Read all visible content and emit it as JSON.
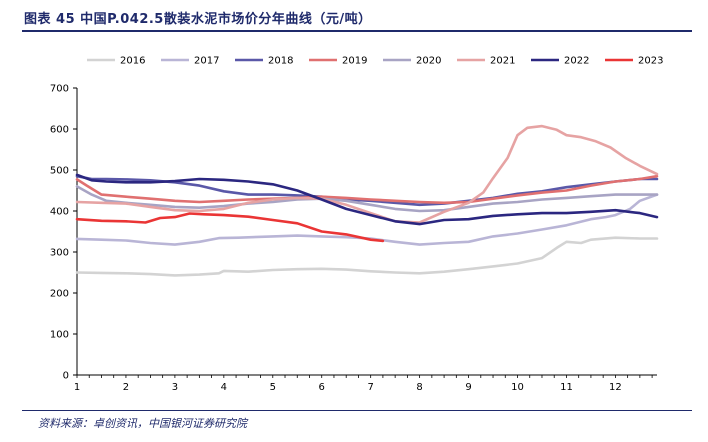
{
  "header": {
    "title": "图表 45 中国P.042.5散装水泥市场价分年曲线（元/吨）"
  },
  "footer": {
    "source": "资料来源：卓创资讯，中国银河证券研究院"
  },
  "colors": {
    "2016": "#d3d3d3",
    "2017": "#b9b5d6",
    "2018": "#5a58a8",
    "2019": "#e07070",
    "2020": "#a8a4c4",
    "2021": "#e6a3a3",
    "2022": "#2b2780",
    "2023": "#ea3535"
  },
  "chart_data": {
    "type": "line",
    "title": "中国P.042.5散装水泥市场价分年曲线（元/吨）",
    "xlabel": "",
    "ylabel": "",
    "xlim": [
      1,
      12.85
    ],
    "ylim": [
      0,
      700
    ],
    "yticks": [
      0,
      100,
      200,
      300,
      400,
      500,
      600,
      700
    ],
    "xticks": [
      1,
      2,
      3,
      4,
      5,
      6,
      7,
      8,
      9,
      10,
      11,
      12
    ],
    "legend_position": "top",
    "series": [
      {
        "name": "2016",
        "points": [
          [
            1,
            250
          ],
          [
            1.5,
            249
          ],
          [
            2,
            248
          ],
          [
            2.5,
            246
          ],
          [
            3,
            243
          ],
          [
            3.5,
            245
          ],
          [
            3.9,
            248
          ],
          [
            4,
            254
          ],
          [
            4.5,
            252
          ],
          [
            5,
            256
          ],
          [
            5.5,
            258
          ],
          [
            6,
            259
          ],
          [
            6.5,
            257
          ],
          [
            7,
            253
          ],
          [
            7.5,
            250
          ],
          [
            8,
            248
          ],
          [
            8.5,
            252
          ],
          [
            9,
            258
          ],
          [
            9.5,
            265
          ],
          [
            10,
            272
          ],
          [
            10.5,
            285
          ],
          [
            10.8,
            310
          ],
          [
            11,
            325
          ],
          [
            11.3,
            322
          ],
          [
            11.5,
            330
          ],
          [
            12,
            335
          ],
          [
            12.5,
            333
          ],
          [
            12.85,
            333
          ]
        ]
      },
      {
        "name": "2017",
        "points": [
          [
            1,
            332
          ],
          [
            1.5,
            330
          ],
          [
            2,
            328
          ],
          [
            2.5,
            322
          ],
          [
            3,
            318
          ],
          [
            3.5,
            325
          ],
          [
            3.9,
            334
          ],
          [
            4.3,
            335
          ],
          [
            5,
            338
          ],
          [
            5.5,
            340
          ],
          [
            6,
            338
          ],
          [
            6.5,
            336
          ],
          [
            7,
            333
          ],
          [
            7.5,
            325
          ],
          [
            8,
            318
          ],
          [
            8.5,
            322
          ],
          [
            9,
            325
          ],
          [
            9.5,
            338
          ],
          [
            10,
            345
          ],
          [
            10.5,
            355
          ],
          [
            11,
            365
          ],
          [
            11.5,
            380
          ],
          [
            11.8,
            385
          ],
          [
            12,
            390
          ],
          [
            12.3,
            405
          ],
          [
            12.5,
            425
          ],
          [
            12.85,
            440
          ]
        ]
      },
      {
        "name": "2018",
        "points": [
          [
            1,
            485
          ],
          [
            1.3,
            478
          ],
          [
            1.6,
            478
          ],
          [
            2,
            477
          ],
          [
            2.5,
            475
          ],
          [
            3,
            470
          ],
          [
            3.5,
            462
          ],
          [
            4,
            448
          ],
          [
            4.5,
            440
          ],
          [
            5,
            440
          ],
          [
            5.5,
            438
          ],
          [
            6,
            435
          ],
          [
            6.5,
            428
          ],
          [
            7,
            425
          ],
          [
            7.5,
            420
          ],
          [
            8,
            415
          ],
          [
            8.5,
            418
          ],
          [
            9,
            425
          ],
          [
            9.5,
            432
          ],
          [
            10,
            442
          ],
          [
            10.5,
            448
          ],
          [
            11,
            458
          ],
          [
            11.5,
            465
          ],
          [
            12,
            472
          ],
          [
            12.5,
            478
          ],
          [
            12.85,
            478
          ]
        ]
      },
      {
        "name": "2019",
        "points": [
          [
            1,
            477
          ],
          [
            1.2,
            462
          ],
          [
            1.5,
            440
          ],
          [
            2,
            435
          ],
          [
            2.5,
            430
          ],
          [
            3,
            425
          ],
          [
            3.5,
            422
          ],
          [
            4,
            425
          ],
          [
            4.5,
            428
          ],
          [
            5,
            430
          ],
          [
            5.5,
            432
          ],
          [
            6,
            435
          ],
          [
            6.5,
            432
          ],
          [
            7,
            428
          ],
          [
            7.5,
            425
          ],
          [
            8,
            422
          ],
          [
            8.5,
            420
          ],
          [
            9,
            422
          ],
          [
            9.5,
            430
          ],
          [
            10,
            438
          ],
          [
            10.5,
            445
          ],
          [
            11,
            450
          ],
          [
            11.5,
            462
          ],
          [
            12,
            472
          ],
          [
            12.5,
            478
          ],
          [
            12.85,
            485
          ]
        ]
      },
      {
        "name": "2020",
        "points": [
          [
            1,
            460
          ],
          [
            1.3,
            440
          ],
          [
            1.6,
            425
          ],
          [
            2,
            420
          ],
          [
            2.5,
            415
          ],
          [
            3,
            410
          ],
          [
            3.5,
            408
          ],
          [
            4,
            412
          ],
          [
            4.5,
            418
          ],
          [
            5,
            422
          ],
          [
            5.5,
            428
          ],
          [
            6,
            430
          ],
          [
            6.5,
            425
          ],
          [
            7,
            415
          ],
          [
            7.5,
            405
          ],
          [
            8,
            400
          ],
          [
            8.5,
            402
          ],
          [
            9,
            410
          ],
          [
            9.5,
            418
          ],
          [
            10,
            422
          ],
          [
            10.5,
            428
          ],
          [
            11,
            432
          ],
          [
            11.5,
            436
          ],
          [
            12,
            440
          ],
          [
            12.5,
            440
          ],
          [
            12.85,
            440
          ]
        ]
      },
      {
        "name": "2021",
        "points": [
          [
            1,
            422
          ],
          [
            1.5,
            420
          ],
          [
            2,
            418
          ],
          [
            2.5,
            410
          ],
          [
            3,
            402
          ],
          [
            3.5,
            400
          ],
          [
            4,
            405
          ],
          [
            4.5,
            420
          ],
          [
            5,
            428
          ],
          [
            5.5,
            432
          ],
          [
            6,
            430
          ],
          [
            6.5,
            415
          ],
          [
            7,
            395
          ],
          [
            7.5,
            375
          ],
          [
            8,
            372
          ],
          [
            8.5,
            398
          ],
          [
            9,
            420
          ],
          [
            9.3,
            445
          ],
          [
            9.5,
            480
          ],
          [
            9.8,
            530
          ],
          [
            10,
            585
          ],
          [
            10.2,
            603
          ],
          [
            10.5,
            607
          ],
          [
            10.8,
            598
          ],
          [
            11,
            585
          ],
          [
            11.3,
            580
          ],
          [
            11.6,
            570
          ],
          [
            11.9,
            555
          ],
          [
            12.2,
            530
          ],
          [
            12.5,
            510
          ],
          [
            12.85,
            490
          ]
        ]
      },
      {
        "name": "2022",
        "points": [
          [
            1,
            488
          ],
          [
            1.3,
            475
          ],
          [
            1.6,
            472
          ],
          [
            2,
            470
          ],
          [
            2.5,
            470
          ],
          [
            3,
            473
          ],
          [
            3.5,
            478
          ],
          [
            4,
            476
          ],
          [
            4.5,
            472
          ],
          [
            5,
            465
          ],
          [
            5.5,
            450
          ],
          [
            6,
            428
          ],
          [
            6.5,
            405
          ],
          [
            7,
            390
          ],
          [
            7.5,
            375
          ],
          [
            8,
            368
          ],
          [
            8.5,
            378
          ],
          [
            9,
            380
          ],
          [
            9.5,
            388
          ],
          [
            10,
            392
          ],
          [
            10.5,
            395
          ],
          [
            11,
            395
          ],
          [
            11.5,
            398
          ],
          [
            12,
            402
          ],
          [
            12.5,
            395
          ],
          [
            12.85,
            385
          ]
        ]
      },
      {
        "name": "2023",
        "points": [
          [
            1,
            380
          ],
          [
            1.5,
            376
          ],
          [
            2,
            375
          ],
          [
            2.4,
            372
          ],
          [
            2.7,
            383
          ],
          [
            3,
            385
          ],
          [
            3.3,
            394
          ],
          [
            3.6,
            392
          ],
          [
            4,
            390
          ],
          [
            4.5,
            386
          ],
          [
            5,
            378
          ],
          [
            5.5,
            370
          ],
          [
            6,
            350
          ],
          [
            6.5,
            343
          ],
          [
            7,
            330
          ],
          [
            7.25,
            327
          ]
        ]
      }
    ]
  }
}
